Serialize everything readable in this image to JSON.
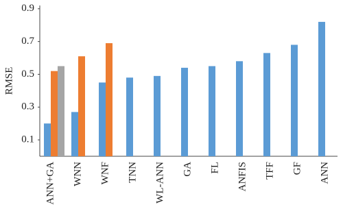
{
  "chart_data": {
    "type": "bar",
    "y_label": "RMSE",
    "categories": [
      "ANN+GA",
      "WNN",
      "WNF",
      "TNN",
      "WL-ANN",
      "GA",
      "FL",
      "ANFIS",
      "TFF",
      "GF",
      "ANN"
    ],
    "series": [
      {
        "color": "#5b9bd5",
        "values": [
          0.2,
          0.27,
          0.45,
          0.48,
          0.49,
          0.54,
          0.55,
          0.58,
          0.63,
          0.68,
          0.82
        ]
      },
      {
        "color": "#ed7d31",
        "values": [
          0.52,
          0.61,
          0.69,
          null,
          null,
          null,
          null,
          null,
          null,
          null,
          null
        ]
      },
      {
        "color": "#a5a5a5",
        "values": [
          0.55,
          null,
          null,
          null,
          null,
          null,
          null,
          null,
          null,
          null,
          null
        ]
      }
    ],
    "ylim": [
      0,
      0.92
    ],
    "yticks": [
      0.1,
      0.3,
      0.5,
      0.7,
      0.9
    ]
  }
}
